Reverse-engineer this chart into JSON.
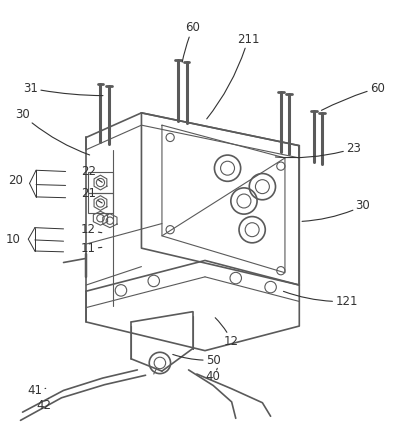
{
  "background_color": "#ffffff",
  "line_color": "#5a5a5a",
  "annotation_color": "#333333",
  "labels": {
    "60_top": "60",
    "211": "211",
    "60_right": "60",
    "31": "31",
    "30_left": "30",
    "23": "23",
    "22": "22",
    "20": "20",
    "21": "21",
    "30_right": "30",
    "12_top": "12",
    "10": "10",
    "11": "11",
    "121": "121",
    "12_bot": "12",
    "50": "50",
    "40": "40",
    "41": "41",
    "42": "42"
  },
  "font_size": 8.5
}
